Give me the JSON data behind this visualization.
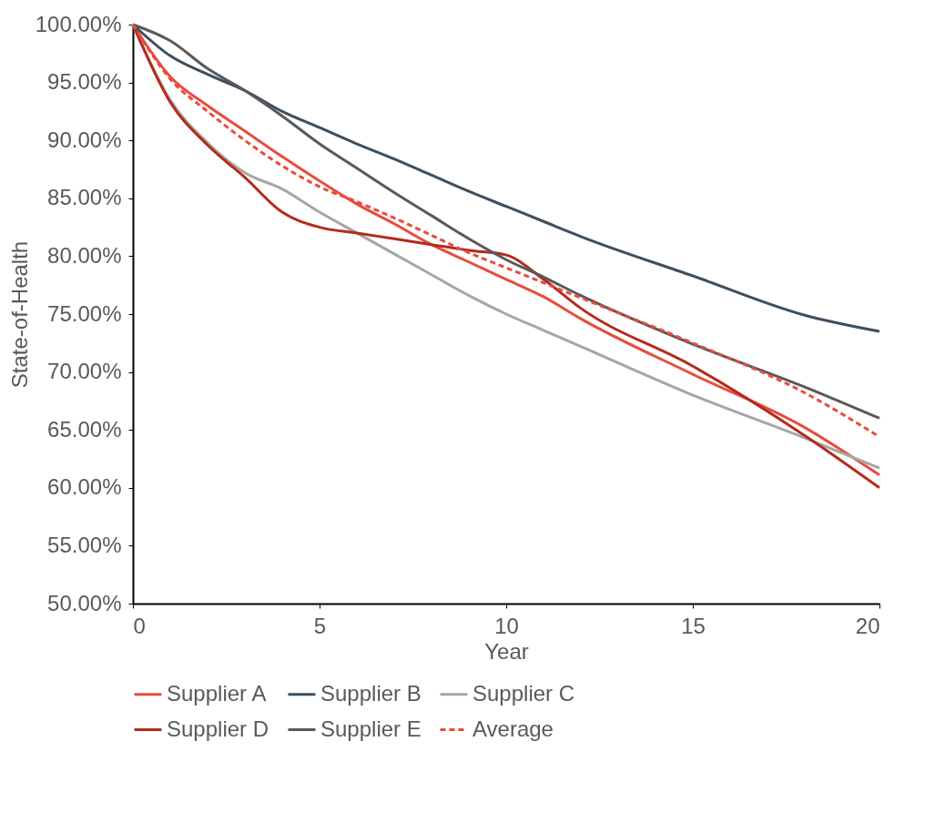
{
  "chart_data": {
    "type": "line",
    "xlabel": "Year",
    "ylabel": "State-of-Health",
    "x": [
      0,
      1,
      2,
      3,
      4,
      5,
      6,
      7,
      8,
      9,
      10,
      11,
      12,
      15,
      18,
      20
    ],
    "xlim": [
      0,
      20
    ],
    "xticks": [
      0,
      5,
      10,
      15,
      20
    ],
    "ylim": [
      50,
      100
    ],
    "yticks": [
      {
        "value": 50,
        "label": "50.00%"
      },
      {
        "value": 55,
        "label": "55.00%"
      },
      {
        "value": 60,
        "label": "60.00%"
      },
      {
        "value": 65,
        "label": "65.00%"
      },
      {
        "value": 70,
        "label": "70.00%"
      },
      {
        "value": 75,
        "label": "75.00%"
      },
      {
        "value": 80,
        "label": "80.00%"
      },
      {
        "value": 85,
        "label": "85.00%"
      },
      {
        "value": 90,
        "label": "90.00%"
      },
      {
        "value": 95,
        "label": "95.00%"
      },
      {
        "value": 100,
        "label": "100.00%"
      }
    ],
    "grid": false,
    "legend": "bottom",
    "marker": "none",
    "series": [
      {
        "name": "Supplier A",
        "color": "#e84c3d",
        "line_style": "solid",
        "values": [
          100,
          95.5,
          93.0,
          90.8,
          88.6,
          86.5,
          84.5,
          82.8,
          81.0,
          79.5,
          78.0,
          76.5,
          74.6,
          69.8,
          65.2,
          61.1
        ]
      },
      {
        "name": "Supplier B",
        "color": "#3d4f5f",
        "line_style": "solid",
        "values": [
          100,
          97.3,
          95.7,
          94.3,
          92.5,
          91.1,
          89.7,
          88.4,
          87.0,
          85.6,
          84.3,
          83.0,
          81.7,
          78.3,
          74.9,
          73.5
        ]
      },
      {
        "name": "Supplier C",
        "color": "#a6a6a6",
        "line_style": "solid",
        "values": [
          100,
          93.5,
          89.8,
          87.2,
          85.8,
          83.8,
          82.0,
          80.2,
          78.4,
          76.6,
          75.0,
          73.6,
          72.2,
          68.0,
          64.3,
          61.7
        ]
      },
      {
        "name": "Supplier D",
        "color": "#b52a1c",
        "line_style": "solid",
        "values": [
          100,
          93.3,
          89.6,
          86.8,
          83.8,
          82.5,
          82.0,
          81.5,
          81.0,
          80.5,
          80.1,
          78.0,
          75.5,
          70.5,
          64.5,
          60.0
        ]
      },
      {
        "name": "Supplier E",
        "color": "#595959",
        "line_style": "solid",
        "values": [
          100,
          98.6,
          96.2,
          94.3,
          92.1,
          89.7,
          87.6,
          85.5,
          83.5,
          81.5,
          79.7,
          78.2,
          76.6,
          72.4,
          68.7,
          66.0
        ]
      },
      {
        "name": "Average",
        "color": "#e84c3d",
        "line_style": "dashed",
        "values": [
          100,
          95.3,
          92.5,
          90.0,
          87.8,
          86.0,
          84.7,
          83.3,
          81.8,
          80.3,
          79.0,
          77.7,
          76.4,
          72.5,
          68.2,
          64.4
        ]
      }
    ]
  }
}
